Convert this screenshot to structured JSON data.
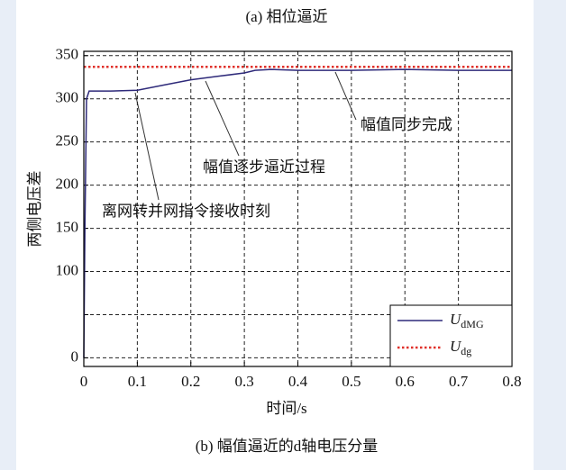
{
  "chart_data": {
    "type": "line",
    "title": "(a) 相位逼近",
    "caption": "(b) 幅值逼近的d轴电压分量",
    "x_label": "时间/s",
    "y_label": "两侧电压差",
    "xlim": [
      0,
      0.8
    ],
    "xticks": [
      0,
      0.1,
      0.2,
      0.3,
      0.4,
      0.5,
      0.6,
      0.7,
      0.8
    ],
    "ylim": [
      -10,
      355
    ],
    "yticks": [
      0,
      {
        "value": 50,
        "label": null
      },
      100,
      150,
      200,
      250,
      300,
      350
    ],
    "grid": true,
    "legend": "lower right",
    "series": [
      {
        "name": "UdMG",
        "color": "#2e2a7a",
        "style": "solid",
        "x": [
          0,
          0.002,
          0.005,
          0.01,
          0.05,
          0.1,
          0.15,
          0.2,
          0.25,
          0.3,
          0.32,
          0.35,
          0.4,
          0.5,
          0.6,
          0.7,
          0.8
        ],
        "values": [
          0,
          150,
          300,
          309,
          309,
          310,
          316,
          322,
          326,
          330,
          333,
          334,
          333,
          333,
          334,
          333,
          333
        ]
      },
      {
        "name": "Udg",
        "color": "#e0302a",
        "style": "dotted",
        "x": [
          0,
          0.8
        ],
        "values": [
          337,
          337
        ]
      }
    ],
    "annotations": [
      "幅值同步完成",
      "幅值逐步逼近过程",
      "离网转并网指令接收时刻"
    ]
  }
}
